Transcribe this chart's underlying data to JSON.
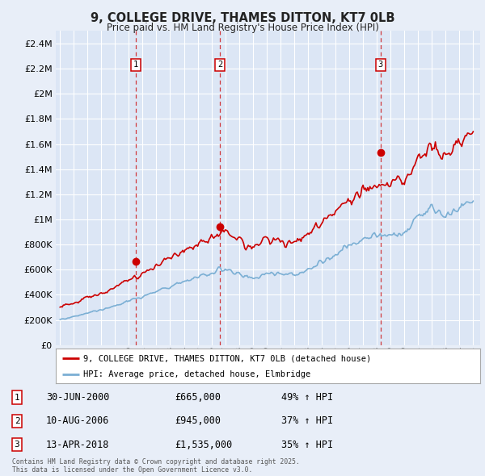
{
  "title": "9, COLLEGE DRIVE, THAMES DITTON, KT7 0LB",
  "subtitle": "Price paid vs. HM Land Registry's House Price Index (HPI)",
  "bg_color": "#e8eef8",
  "plot_bg_color": "#dce6f5",
  "grid_color": "#ffffff",
  "red_color": "#cc0000",
  "blue_color": "#7bafd4",
  "transactions": [
    {
      "date_x": 2000.497,
      "price": 665000,
      "label": "1",
      "date_str": "30-JUN-2000",
      "pct": "49%"
    },
    {
      "date_x": 2006.609,
      "price": 945000,
      "label": "2",
      "date_str": "10-AUG-2006",
      "pct": "37%"
    },
    {
      "date_x": 2018.274,
      "price": 1535000,
      "label": "3",
      "date_str": "13-APR-2018",
      "pct": "35%"
    }
  ],
  "legend_line1": "9, COLLEGE DRIVE, THAMES DITTON, KT7 0LB (detached house)",
  "legend_line2": "HPI: Average price, detached house, Elmbridge",
  "footer": "Contains HM Land Registry data © Crown copyright and database right 2025.\nThis data is licensed under the Open Government Licence v3.0.",
  "yticks": [
    0,
    200000,
    400000,
    600000,
    800000,
    1000000,
    1200000,
    1400000,
    1600000,
    1800000,
    2000000,
    2200000,
    2400000
  ],
  "ylim": [
    0,
    2500000
  ],
  "xlim_lo": 1994.7,
  "xlim_hi": 2025.5
}
